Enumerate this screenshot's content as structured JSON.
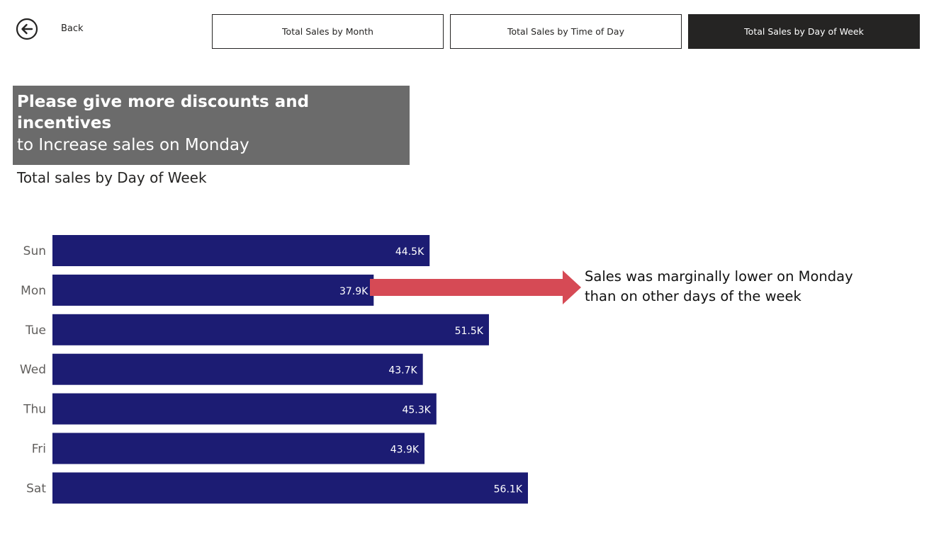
{
  "back": {
    "label": "Back",
    "icon": "back-arrow-icon"
  },
  "nav": {
    "tabs": [
      {
        "label": "Total Sales by Month",
        "active": false
      },
      {
        "label": "Total Sales by Time of Day",
        "active": false
      },
      {
        "label": "Total Sales by Day of Week",
        "active": true
      }
    ]
  },
  "banner": {
    "line1": "Please give more discounts and incentives",
    "line2": "to Increase sales on Monday"
  },
  "annotation": {
    "line1": "Sales was marginally lower on Monday",
    "line2": "than on other days of the week"
  },
  "colors": {
    "bar": "#1c1c73",
    "arrow": "#d64a55",
    "banner": "#6b6b6b",
    "active_tab": "#252423"
  },
  "chart_data": {
    "type": "bar",
    "orientation": "horizontal",
    "title": "Total sales by Day of Week",
    "categories": [
      "Sun",
      "Mon",
      "Tue",
      "Wed",
      "Thu",
      "Fri",
      "Sat"
    ],
    "values": [
      44500,
      37900,
      51500,
      43700,
      45300,
      43900,
      56100
    ],
    "labels": [
      "44.5K",
      "37.9K",
      "51.5K",
      "43.7K",
      "45.3K",
      "43.9K",
      "56.1K"
    ],
    "xlim": [
      0,
      56100
    ],
    "grid": false,
    "legend": "none"
  }
}
